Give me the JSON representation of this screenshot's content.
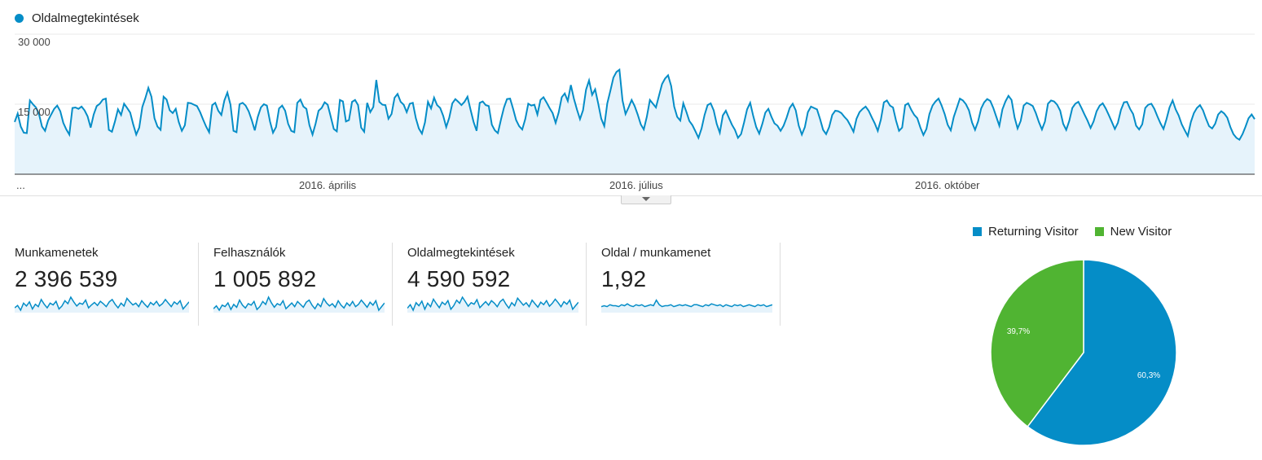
{
  "chart_data": [
    {
      "type": "area",
      "series": [
        {
          "name": "Oldalmegtekintések",
          "color": "#058dc7"
        }
      ],
      "y_ticks": [
        "30 000",
        "15 000"
      ],
      "ylim": [
        0,
        30000
      ],
      "x_labels": [
        "...",
        "2016. április",
        "2016. július",
        "2016. október"
      ],
      "values": [
        11200,
        13000,
        10200,
        8900,
        8800,
        15800,
        15000,
        14300,
        12900,
        10200,
        9300,
        11500,
        12800,
        14000,
        14700,
        13500,
        11000,
        9600,
        8500,
        14200,
        14300,
        14000,
        14500,
        13700,
        12400,
        10000,
        12800,
        14600,
        15100,
        16000,
        16200,
        9500,
        9100,
        11300,
        13900,
        12700,
        15100,
        14200,
        13200,
        10700,
        8500,
        10000,
        14400,
        16300,
        18500,
        16600,
        12000,
        10200,
        9500,
        16600,
        16000,
        13700,
        13100,
        14000,
        11200,
        9300,
        10500,
        15300,
        15200,
        14900,
        14600,
        13300,
        11700,
        10200,
        9000,
        14800,
        15300,
        13600,
        12700,
        15800,
        17500,
        14900,
        9300,
        9000,
        15000,
        15300,
        14700,
        13500,
        11600,
        9400,
        12300,
        14300,
        15000,
        14700,
        11300,
        8900,
        10100,
        14100,
        14700,
        13600,
        10800,
        9300,
        9000,
        15300,
        16000,
        14500,
        14000,
        10500,
        8500,
        10800,
        13600,
        14200,
        15400,
        14900,
        12300,
        9700,
        9200,
        15900,
        15600,
        11300,
        11600,
        15500,
        15900,
        14800,
        10000,
        9100,
        15300,
        13300,
        14400,
        20200,
        15500,
        14900,
        14800,
        11900,
        12900,
        16400,
        17200,
        15500,
        14900,
        13300,
        15100,
        15300,
        12000,
        9800,
        8700,
        11100,
        15500,
        14100,
        16400,
        14800,
        14200,
        12500,
        10100,
        12100,
        15200,
        16100,
        15500,
        14800,
        15500,
        16600,
        13800,
        11200,
        9300,
        15300,
        15600,
        14800,
        14600,
        10600,
        9400,
        8800,
        11700,
        14300,
        16100,
        16200,
        14000,
        11600,
        10300,
        9600,
        11800,
        15100,
        14700,
        14900,
        12800,
        15900,
        16500,
        15400,
        14200,
        13100,
        11000,
        13200,
        16500,
        17300,
        15700,
        19100,
        16200,
        13900,
        11800,
        13700,
        18100,
        20100,
        17000,
        18200,
        15200,
        11900,
        10300,
        15200,
        17900,
        20700,
        21900,
        22400,
        15800,
        12900,
        14300,
        15900,
        14600,
        12800,
        10700,
        9600,
        12300,
        15900,
        15100,
        14300,
        16800,
        19300,
        20500,
        21200,
        18900,
        14500,
        12300,
        11500,
        15200,
        13400,
        11400,
        10500,
        9200,
        7800,
        9800,
        12700,
        14800,
        15200,
        13700,
        10800,
        8900,
        12600,
        13600,
        12100,
        10600,
        9500,
        7800,
        8600,
        11100,
        13900,
        15300,
        12500,
        10100,
        8700,
        10800,
        13200,
        14000,
        12300,
        10900,
        10400,
        9300,
        10400,
        12100,
        14200,
        15100,
        13700,
        10400,
        8500,
        10100,
        13300,
        14500,
        14200,
        13900,
        11800,
        9500,
        8600,
        10100,
        12700,
        13600,
        13500,
        13100,
        12300,
        11600,
        10400,
        9100,
        11900,
        13300,
        14000,
        14500,
        13600,
        12200,
        10900,
        9300,
        11700,
        15400,
        15800,
        14700,
        14300,
        11500,
        9300,
        10000,
        14800,
        15200,
        13800,
        12700,
        12000,
        10000,
        8400,
        9700,
        12900,
        14700,
        15600,
        16200,
        14700,
        12900,
        10600,
        9400,
        12300,
        14200,
        16200,
        15800,
        15000,
        13700,
        11100,
        9500,
        11300,
        14100,
        15400,
        16100,
        15700,
        14200,
        12300,
        10400,
        13900,
        15600,
        16800,
        15900,
        12200,
        9800,
        11400,
        14700,
        15300,
        15000,
        14600,
        13100,
        11200,
        9600,
        11300,
        15100,
        15800,
        15600,
        14900,
        13600,
        10800,
        9500,
        11400,
        14200,
        15100,
        15500,
        14200,
        12800,
        11500,
        9900,
        11300,
        13500,
        14700,
        15200,
        14100,
        12700,
        11200,
        9700,
        11000,
        13800,
        15400,
        15500,
        14000,
        12900,
        10400,
        9600,
        10700,
        14200,
        14900,
        15100,
        14000,
        12400,
        10900,
        9700,
        11800,
        14300,
        15800,
        13900,
        12600,
        10700,
        9400,
        8200,
        11200,
        13100,
        14200,
        14800,
        13700,
        11900,
        10300,
        9800,
        10800,
        12800,
        13500,
        13000,
        12100,
        10100,
        8600,
        7800,
        7400,
        8600,
        10200,
        12000,
        12800,
        11800
      ],
      "annotations": []
    },
    {
      "type": "line",
      "name": "spark-munkamenetek",
      "values": [
        52,
        56,
        48,
        60,
        55,
        62,
        50,
        58,
        54,
        66,
        58,
        52,
        60,
        57,
        63,
        50,
        55,
        64,
        59,
        70,
        62,
        55,
        60,
        58,
        65,
        52,
        57,
        61,
        56,
        63,
        59,
        54,
        62,
        66,
        58,
        52,
        60,
        55,
        68,
        62,
        57,
        60,
        54,
        64,
        58,
        53,
        61,
        57,
        63,
        55,
        59,
        66,
        60,
        54,
        62,
        58,
        64,
        50,
        56,
        62
      ]
    },
    {
      "type": "line",
      "name": "spark-felhasznalok",
      "values": [
        50,
        54,
        48,
        55,
        53,
        58,
        49,
        56,
        52,
        62,
        55,
        51,
        57,
        55,
        60,
        49,
        53,
        60,
        56,
        66,
        58,
        52,
        57,
        55,
        61,
        50,
        54,
        58,
        53,
        60,
        56,
        52,
        59,
        62,
        55,
        50,
        57,
        53,
        64,
        58,
        54,
        57,
        52,
        61,
        55,
        51,
        58,
        54,
        60,
        53,
        56,
        62,
        57,
        52,
        59,
        55,
        61,
        48,
        53,
        58
      ]
    },
    {
      "type": "line",
      "name": "spark-oldalmegtekintesek",
      "values": [
        50,
        57,
        46,
        61,
        55,
        64,
        48,
        60,
        53,
        68,
        59,
        51,
        62,
        57,
        65,
        48,
        55,
        66,
        60,
        72,
        63,
        54,
        61,
        58,
        67,
        51,
        57,
        63,
        56,
        65,
        60,
        53,
        63,
        68,
        58,
        50,
        61,
        55,
        70,
        63,
        56,
        61,
        53,
        66,
        59,
        52,
        62,
        57,
        65,
        54,
        60,
        68,
        61,
        53,
        63,
        58,
        66,
        48,
        55,
        62
      ]
    },
    {
      "type": "line",
      "name": "spark-oldal-per-munkamenet",
      "values": [
        55,
        56,
        55,
        57,
        56,
        56,
        55,
        57,
        56,
        58,
        56,
        55,
        57,
        56,
        57,
        55,
        56,
        57,
        56,
        62,
        57,
        55,
        56,
        56,
        57,
        55,
        56,
        57,
        56,
        57,
        56,
        55,
        57,
        57,
        56,
        55,
        57,
        56,
        58,
        57,
        56,
        57,
        55,
        57,
        56,
        55,
        57,
        56,
        57,
        55,
        56,
        57,
        56,
        55,
        57,
        56,
        57,
        55,
        56,
        57
      ]
    },
    {
      "type": "pie",
      "legend_position": "top",
      "slices": [
        {
          "label": "Returning Visitor",
          "value": 60.3,
          "display": "60,3%",
          "color": "#058dc7"
        },
        {
          "label": "New Visitor",
          "value": 39.7,
          "display": "39,7%",
          "color": "#50b432"
        }
      ]
    }
  ],
  "metrics": [
    {
      "label": "Munkamenetek",
      "value": "2 396 539"
    },
    {
      "label": "Felhasználók",
      "value": "1 005 892"
    },
    {
      "label": "Oldalmegtekintések",
      "value": "4 590 592"
    },
    {
      "label": "Oldal / munkamenet",
      "value": "1,92"
    }
  ]
}
